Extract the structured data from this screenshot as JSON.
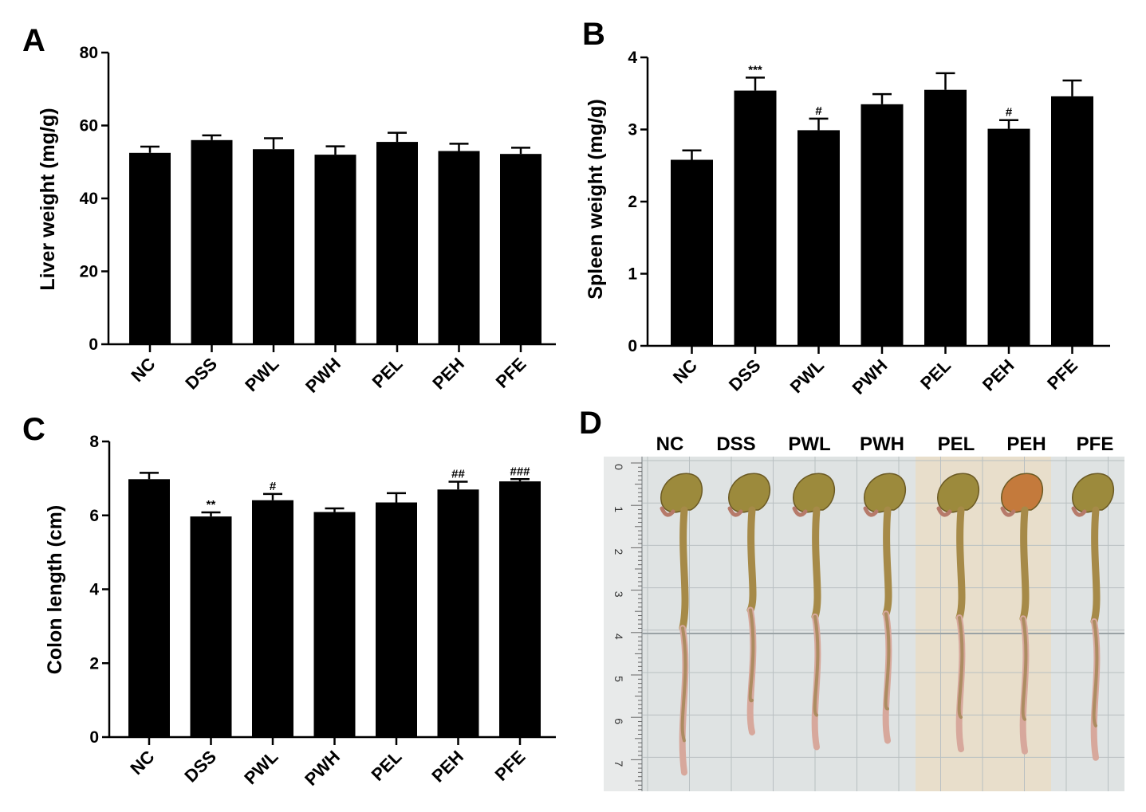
{
  "chart_data": [
    {
      "panel": "A",
      "type": "bar",
      "categories": [
        "NC",
        "DSS",
        "PWL",
        "PWH",
        "PEL",
        "PEH",
        "PFE"
      ],
      "values": [
        52.5,
        56.0,
        53.5,
        52.0,
        55.5,
        53.0,
        52.2
      ],
      "errors": [
        1.7,
        1.3,
        3.0,
        2.3,
        2.5,
        2.0,
        1.7
      ],
      "annotations": [
        "",
        "",
        "",
        "",
        "",
        "",
        ""
      ],
      "ylabel": "Liver weight  (mg/g)",
      "ylim": [
        0,
        80
      ],
      "yticks": [
        "0",
        "20",
        "40",
        "60",
        "80"
      ],
      "grid": false,
      "bar_color": "#000000"
    },
    {
      "panel": "B",
      "type": "bar",
      "categories": [
        "NC",
        "DSS",
        "PWL",
        "PWH",
        "PEL",
        "PEH",
        "PFE"
      ],
      "values": [
        2.58,
        3.54,
        2.99,
        3.35,
        3.55,
        3.01,
        3.46
      ],
      "errors": [
        0.13,
        0.18,
        0.16,
        0.14,
        0.23,
        0.12,
        0.22
      ],
      "annotations": [
        "",
        "***",
        "#",
        "",
        "",
        "#",
        ""
      ],
      "ylabel": "Spleen weight (mg/g)",
      "ylim": [
        0,
        4
      ],
      "yticks": [
        "0",
        "1",
        "2",
        "3",
        "4"
      ],
      "grid": false,
      "bar_color": "#000000"
    },
    {
      "panel": "C",
      "type": "bar",
      "categories": [
        "NC",
        "DSS",
        "PWL",
        "PWH",
        "PEL",
        "PEH",
        "PFE"
      ],
      "values": [
        6.98,
        5.97,
        6.41,
        6.09,
        6.35,
        6.7,
        6.92
      ],
      "errors": [
        0.17,
        0.11,
        0.17,
        0.1,
        0.25,
        0.21,
        0.06
      ],
      "annotations": [
        "",
        "**",
        "#",
        "",
        "",
        "##",
        "###"
      ],
      "ylabel": "Colon length (cm)",
      "ylim": [
        0,
        8
      ],
      "yticks": [
        "0",
        "2",
        "4",
        "6",
        "8"
      ],
      "grid": false,
      "bar_color": "#000000"
    }
  ],
  "photo": {
    "panel": "D",
    "labels": [
      "NC",
      "DSS",
      "PWL",
      "PWH",
      "PEL",
      "PEH",
      "PFE"
    ],
    "ruler_marks": [
      "0",
      "1",
      "2",
      "3",
      "4",
      "5",
      "6",
      "7"
    ],
    "colon_lengths_ruler": [
      7.3,
      6.35,
      6.7,
      6.55,
      6.75,
      6.8,
      6.95
    ],
    "colors": {
      "background": "#dfe3e3",
      "grid_line": "#b9c0c2",
      "tinted_background": "#eadcc4",
      "cecum": "#9c8a3c",
      "cecum_red": "#c47a3c",
      "colon_upper": "#a68a48",
      "colon_lower": "#d7a89c"
    }
  }
}
